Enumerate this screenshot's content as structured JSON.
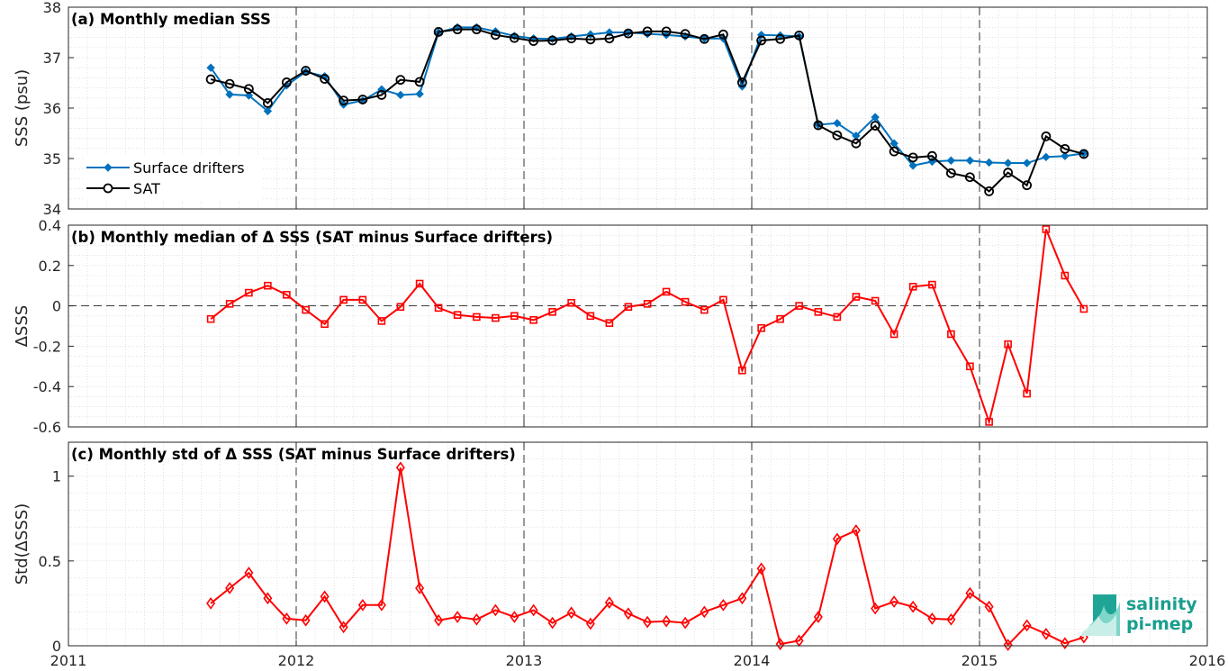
{
  "colors": {
    "drifters": "#0072BD",
    "sat": "#000000",
    "delta": "#FF0000",
    "logo": "#1a9e8f"
  },
  "logo": {
    "line1": "salinity",
    "line2": "pi-mep",
    "icon": "salinity-wave-icon"
  },
  "x_ticks": [
    "2011",
    "2012",
    "2013",
    "2014",
    "2015",
    "2016"
  ],
  "chart_data": [
    {
      "type": "line",
      "title": "(a) Monthly median SSS",
      "ylabel": "SSS (psu)",
      "xlim": [
        2011.0,
        2016.0
      ],
      "ylim": [
        34,
        38
      ],
      "yticks": [
        34,
        35,
        36,
        37,
        38
      ],
      "ytick_labels": [
        "34",
        "35",
        "36",
        "37",
        "38"
      ],
      "grid": true,
      "legend": "bottom-left",
      "series": [
        {
          "name": "Surface drifters",
          "marker": "diamond-filled",
          "x": [
            2011.625,
            2011.708,
            2011.792,
            2011.875,
            2011.958,
            2012.042,
            2012.125,
            2012.208,
            2012.292,
            2012.375,
            2012.458,
            2012.542,
            2012.625,
            2012.708,
            2012.792,
            2012.875,
            2012.958,
            2013.042,
            2013.125,
            2013.208,
            2013.292,
            2013.375,
            2013.458,
            2013.542,
            2013.625,
            2013.708,
            2013.792,
            2013.875,
            2013.958,
            2014.042,
            2014.125,
            2014.208,
            2014.292,
            2014.375,
            2014.458,
            2014.542,
            2014.625,
            2014.708,
            2014.792,
            2014.875,
            2014.958,
            2015.042,
            2015.125,
            2015.208,
            2015.292,
            2015.375,
            2015.458
          ],
          "y": [
            36.8,
            36.27,
            36.25,
            35.94,
            36.45,
            36.72,
            36.63,
            36.07,
            36.15,
            36.37,
            36.26,
            36.28,
            37.5,
            37.6,
            37.6,
            37.52,
            37.43,
            37.38,
            37.37,
            37.42,
            37.46,
            37.5,
            37.5,
            37.47,
            37.45,
            37.42,
            37.38,
            37.38,
            36.43,
            37.45,
            37.44,
            37.42,
            35.67,
            35.7,
            35.45,
            35.82,
            35.3,
            34.86,
            34.94,
            34.96,
            34.96,
            34.92,
            34.91,
            34.91,
            35.03,
            35.05,
            35.1
          ]
        },
        {
          "name": "SAT",
          "marker": "circle-open",
          "x": [
            2011.625,
            2011.708,
            2011.792,
            2011.875,
            2011.958,
            2012.042,
            2012.125,
            2012.208,
            2012.292,
            2012.375,
            2012.458,
            2012.542,
            2012.625,
            2012.708,
            2012.792,
            2012.875,
            2012.958,
            2013.042,
            2013.125,
            2013.208,
            2013.292,
            2013.375,
            2013.458,
            2013.542,
            2013.625,
            2013.708,
            2013.792,
            2013.875,
            2013.958,
            2014.042,
            2014.125,
            2014.208,
            2014.292,
            2014.375,
            2014.458,
            2014.542,
            2014.625,
            2014.708,
            2014.792,
            2014.875,
            2014.958,
            2015.042,
            2015.125,
            2015.208,
            2015.292,
            2015.375,
            2015.458
          ],
          "y": [
            36.57,
            36.48,
            36.38,
            36.1,
            36.51,
            36.74,
            36.58,
            36.15,
            36.17,
            36.26,
            36.56,
            36.52,
            37.51,
            37.56,
            37.56,
            37.45,
            37.39,
            37.33,
            37.34,
            37.38,
            37.36,
            37.38,
            37.48,
            37.52,
            37.52,
            37.47,
            37.37,
            37.46,
            36.51,
            37.34,
            37.37,
            37.44,
            35.66,
            35.46,
            35.3,
            35.65,
            35.14,
            35.02,
            35.05,
            34.71,
            34.63,
            34.35,
            34.72,
            34.47,
            35.44,
            35.19,
            35.09
          ]
        }
      ]
    },
    {
      "type": "line",
      "title": "(b) Monthly median of Δ SSS (SAT minus Surface drifters)",
      "ylabel": "ΔSSS",
      "xlim": [
        2011.0,
        2016.0
      ],
      "ylim": [
        -0.6,
        0.4
      ],
      "yticks": [
        -0.6,
        -0.4,
        -0.2,
        0,
        0.2,
        0.4
      ],
      "ytick_labels": [
        "-0.6",
        "-0.4",
        "-0.2",
        "0",
        "0.2",
        "0.4"
      ],
      "grid": true,
      "zero_line": true,
      "series": [
        {
          "marker": "square-open",
          "x": [
            2011.625,
            2011.708,
            2011.792,
            2011.875,
            2011.958,
            2012.042,
            2012.125,
            2012.208,
            2012.292,
            2012.375,
            2012.458,
            2012.542,
            2012.625,
            2012.708,
            2012.792,
            2012.875,
            2012.958,
            2013.042,
            2013.125,
            2013.208,
            2013.292,
            2013.375,
            2013.458,
            2013.542,
            2013.625,
            2013.708,
            2013.792,
            2013.875,
            2013.958,
            2014.042,
            2014.125,
            2014.208,
            2014.292,
            2014.375,
            2014.458,
            2014.542,
            2014.625,
            2014.708,
            2014.792,
            2014.875,
            2014.958,
            2015.042,
            2015.125,
            2015.208,
            2015.292,
            2015.375,
            2015.458
          ],
          "y": [
            -0.065,
            0.01,
            0.065,
            0.1,
            0.055,
            -0.02,
            -0.09,
            0.03,
            0.03,
            -0.075,
            -0.005,
            0.11,
            -0.01,
            -0.045,
            -0.055,
            -0.06,
            -0.05,
            -0.07,
            -0.03,
            0.015,
            -0.05,
            -0.085,
            -0.005,
            0.01,
            0.07,
            0.02,
            -0.02,
            0.03,
            -0.32,
            -0.11,
            -0.065,
            0.0,
            -0.03,
            -0.055,
            0.045,
            0.025,
            -0.14,
            0.095,
            0.105,
            -0.14,
            -0.3,
            -0.575,
            -0.19,
            -0.435,
            0.38,
            0.15,
            -0.015
          ]
        }
      ]
    },
    {
      "type": "line",
      "title": "(c) Monthly std of Δ SSS (SAT minus Surface drifters)",
      "ylabel": "Std(ΔSSS)",
      "xlim": [
        2011.0,
        2016.0
      ],
      "ylim": [
        0,
        1.2
      ],
      "yticks": [
        0,
        0.5,
        1
      ],
      "ytick_labels": [
        "0",
        "0.5",
        "1"
      ],
      "grid": true,
      "series": [
        {
          "marker": "diamond-open",
          "x": [
            2011.625,
            2011.708,
            2011.792,
            2011.875,
            2011.958,
            2012.042,
            2012.125,
            2012.208,
            2012.292,
            2012.375,
            2012.458,
            2012.542,
            2012.625,
            2012.708,
            2012.792,
            2012.875,
            2012.958,
            2013.042,
            2013.125,
            2013.208,
            2013.292,
            2013.375,
            2013.458,
            2013.542,
            2013.625,
            2013.708,
            2013.792,
            2013.875,
            2013.958,
            2014.042,
            2014.125,
            2014.208,
            2014.292,
            2014.375,
            2014.458,
            2014.542,
            2014.625,
            2014.708,
            2014.792,
            2014.875,
            2014.958,
            2015.042,
            2015.125,
            2015.208,
            2015.292,
            2015.375,
            2015.458
          ],
          "y": [
            0.25,
            0.34,
            0.43,
            0.28,
            0.16,
            0.15,
            0.29,
            0.11,
            0.24,
            0.24,
            1.05,
            0.34,
            0.15,
            0.17,
            0.155,
            0.21,
            0.17,
            0.21,
            0.135,
            0.195,
            0.13,
            0.255,
            0.19,
            0.14,
            0.145,
            0.135,
            0.2,
            0.24,
            0.28,
            0.455,
            0.01,
            0.03,
            0.17,
            0.63,
            0.68,
            0.22,
            0.26,
            0.23,
            0.16,
            0.155,
            0.31,
            0.23,
            0.005,
            0.12,
            0.07,
            0.015,
            0.05
          ]
        }
      ]
    }
  ]
}
